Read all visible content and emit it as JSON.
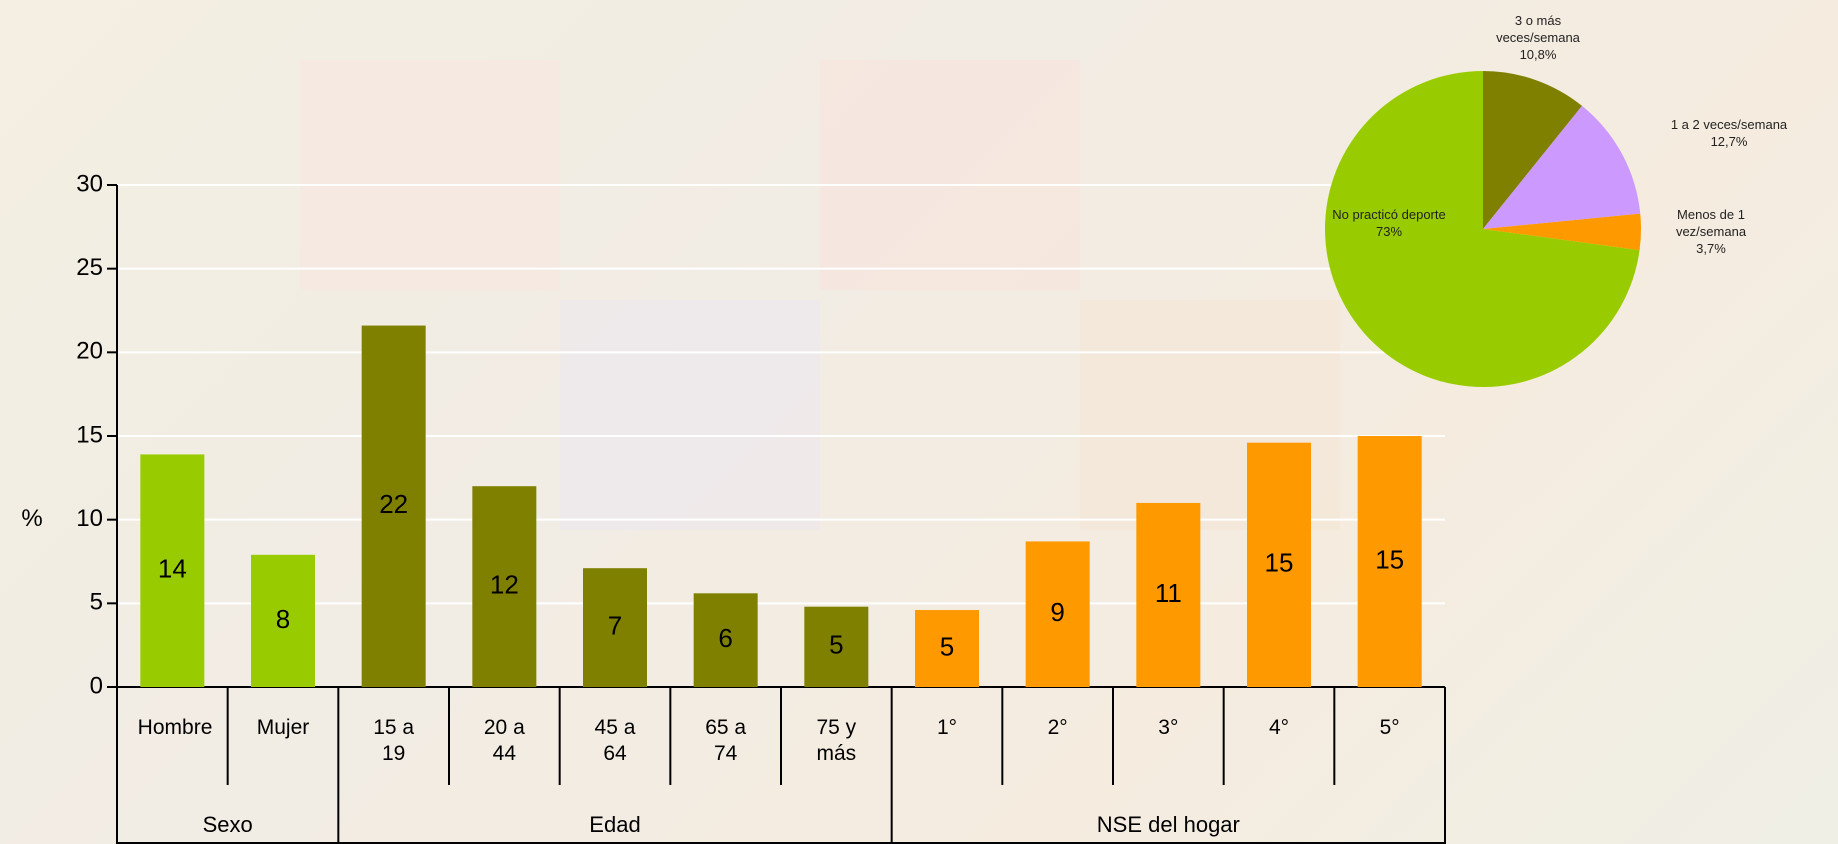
{
  "chart_data": [
    {
      "type": "bar",
      "y_label": "%",
      "ylim": [
        0,
        30
      ],
      "yticks": [
        0,
        5,
        10,
        15,
        20,
        25,
        30
      ],
      "grid": true,
      "groups": [
        {
          "name": "Sexo",
          "color": "#99cc00",
          "categories": [
            "Hombre",
            "Mujer"
          ],
          "values": [
            13.9,
            7.9
          ],
          "value_labels": [
            "14",
            "8"
          ]
        },
        {
          "name": "Edad",
          "color": "#808000",
          "categories": [
            "15 a 19",
            "20 a 44",
            "45 a 64",
            "65 a 74",
            "75 y más"
          ],
          "values": [
            21.6,
            12,
            7.1,
            5.6,
            4.8
          ],
          "value_labels": [
            "22",
            "12",
            "7",
            "6",
            "5"
          ]
        },
        {
          "name": "NSE del hogar",
          "color": "#ff9900",
          "categories": [
            "1°",
            "2°",
            "3°",
            "4°",
            "5°"
          ],
          "values": [
            4.6,
            8.7,
            11,
            14.6,
            15
          ],
          "value_labels": [
            "5",
            "9",
            "11",
            "15",
            "15"
          ]
        }
      ]
    },
    {
      "type": "pie",
      "categories": [
        "3 o más veces/semana",
        "1 a 2 veces/semana",
        "Menos de 1 vez/semana",
        "No practicó deporte"
      ],
      "values": [
        10.8,
        12.7,
        3.7,
        73
      ],
      "value_labels": [
        "10,8%",
        "12,7%",
        "3,7%",
        "73%"
      ],
      "colors": [
        "#808000",
        "#cc99ff",
        "#ff9900",
        "#99cc00"
      ]
    }
  ]
}
